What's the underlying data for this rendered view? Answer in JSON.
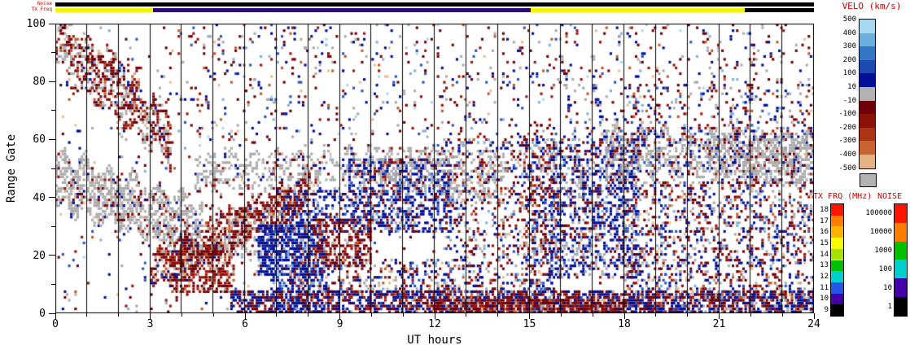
{
  "chart_data": {
    "type": "scatter",
    "title": "",
    "x_axis": {
      "label": "UT hours",
      "range": [
        0,
        24
      ],
      "major_tick_values": [
        0,
        3,
        6,
        9,
        12,
        15,
        18,
        21,
        24
      ],
      "major_tick_labels": [
        "0",
        "3",
        "6",
        "9",
        "12",
        "15",
        "18",
        "21",
        "24"
      ],
      "minor_tick_every": 1,
      "gridline_every_hours": 1
    },
    "y_axis": {
      "label": "Range Gate",
      "range": [
        0,
        100
      ],
      "major_tick_values": [
        0,
        20,
        40,
        60,
        80,
        100
      ],
      "major_tick_labels": [
        "0",
        "20",
        "40",
        "60",
        "80",
        "100"
      ],
      "minor_tick_every": 10
    },
    "status_bars": {
      "noise": {
        "label": "Noise",
        "segments": [
          {
            "t0": 0,
            "t1": 24,
            "color": "#000000"
          }
        ]
      },
      "tx_freq": {
        "label": "TX Freq",
        "segments": [
          {
            "t0": 0,
            "t1": 3.1,
            "color": "#f5f500"
          },
          {
            "t0": 3.1,
            "t1": 15.05,
            "color": "#2e0b72"
          },
          {
            "t0": 15.05,
            "t1": 21.8,
            "color": "#f5f500"
          },
          {
            "t0": 21.8,
            "t1": 24,
            "color": "#000000"
          }
        ]
      }
    },
    "colorbars": {
      "velocity": {
        "title": "VELO (km/s)",
        "boundary_labels": [
          "500",
          "400",
          "300",
          "200",
          "100",
          "10",
          "-10",
          "-100",
          "-200",
          "-300",
          "-400",
          "-500"
        ],
        "cell_colors": [
          "#a8d8ef",
          "#6aaede",
          "#3377c4",
          "#1b49ad",
          "#000f96",
          "#b2b2b2",
          "#6e0008",
          "#8c1208",
          "#ab3414",
          "#c86432",
          "#e5b285"
        ],
        "ground_scatter_color": "#b2b2b2"
      },
      "tx_frequency": {
        "title": "TX FRQ (MHz)",
        "labels": [
          "18",
          "17",
          "16",
          "15",
          "14",
          "13",
          "12",
          "11",
          "10",
          "9"
        ],
        "cell_colors": [
          "#ff1400",
          "#ff7d00",
          "#ffb300",
          "#fafa00",
          "#a8e000",
          "#00c000",
          "#00cfd0",
          "#2255e8",
          "#4400a8",
          "#000000"
        ]
      },
      "noise": {
        "title": "NOISE",
        "labels": [
          "100000",
          "10000",
          "1000",
          "100",
          "10",
          "1"
        ],
        "cell_colors": [
          "#ff1400",
          "#ff7d00",
          "#00c000",
          "#00cfd0",
          "#4400a8",
          "#000000"
        ]
      }
    },
    "point_colors": {
      "navy": "#000f96",
      "blue": "#2a55c0",
      "ltblue": "#7fb2e0",
      "cyan": "#a8dcf0",
      "gray": "#acacac",
      "maroon": "#6e0008",
      "red": "#9c1408",
      "orange": "#c25a28",
      "peach": "#e8bf96"
    },
    "palettes": {
      "all": {
        "navy": 0.2,
        "maroon": 0.22,
        "gray": 0.16,
        "red": 0.12,
        "blue": 0.08,
        "orange": 0.07,
        "ltblue": 0.06,
        "peach": 0.05,
        "cyan": 0.04
      },
      "gscat": {
        "gray": 0.8,
        "maroon": 0.07,
        "navy": 0.06,
        "red": 0.04,
        "peach": 0.03
      },
      "gscatb": {
        "gray": 0.68,
        "navy": 0.16,
        "maroon": 0.08,
        "blue": 0.04,
        "red": 0.04
      },
      "neg": {
        "maroon": 0.5,
        "red": 0.25,
        "orange": 0.08,
        "gray": 0.08,
        "navy": 0.05,
        "peach": 0.04
      },
      "negray": {
        "maroon": 0.36,
        "red": 0.2,
        "gray": 0.3,
        "orange": 0.05,
        "navy": 0.05,
        "peach": 0.04
      },
      "grayneg": {
        "gray": 0.45,
        "maroon": 0.28,
        "red": 0.14,
        "navy": 0.05,
        "orange": 0.05,
        "peach": 0.03
      },
      "pos": {
        "navy": 0.7,
        "blue": 0.12,
        "ltblue": 0.06,
        "gray": 0.06,
        "maroon": 0.04,
        "cyan": 0.02
      },
      "posmix": {
        "navy": 0.5,
        "blue": 0.1,
        "gray": 0.12,
        "maroon": 0.14,
        "red": 0.08,
        "ltblue": 0.06
      },
      "posmix2": {
        "navy": 0.44,
        "gray": 0.2,
        "maroon": 0.14,
        "red": 0.08,
        "blue": 0.07,
        "ltblue": 0.07
      },
      "posgray": {
        "navy": 0.45,
        "gray": 0.34,
        "blue": 0.08,
        "maroon": 0.07,
        "ltblue": 0.06
      },
      "mix": {
        "navy": 0.24,
        "maroon": 0.26,
        "gray": 0.18,
        "red": 0.1,
        "blue": 0.08,
        "orange": 0.06,
        "peach": 0.04,
        "ltblue": 0.04
      },
      "botmix": {
        "navy": 0.45,
        "maroon": 0.3,
        "red": 0.12,
        "blue": 0.05,
        "orange": 0.04,
        "gray": 0.04
      }
    },
    "scatter_regions": [
      {
        "type": "rect",
        "t0": 0,
        "t1": 24,
        "g0": 0,
        "g1": 100,
        "density": 0.03,
        "palette": "all"
      },
      {
        "type": "band",
        "t0": 0,
        "t1": 3.6,
        "gc0": 93,
        "gc1": 61,
        "w": 8,
        "density": 0.5,
        "palette": "negray"
      },
      {
        "type": "band",
        "t0": 0.2,
        "t1": 2.6,
        "gc0": 97,
        "gc1": 79,
        "w": 4,
        "density": 0.33,
        "palette": "negray"
      },
      {
        "type": "band",
        "t0": 0,
        "t1": 4.6,
        "gc0": 46,
        "gc1": 29,
        "w": 9,
        "density": 0.55,
        "palette": "gscat"
      },
      {
        "type": "band",
        "t0": 3.0,
        "t1": 8.0,
        "gc0": 14,
        "gc1": 42,
        "w": 6,
        "density": 0.5,
        "palette": "neg"
      },
      {
        "type": "rect",
        "t0": 3.6,
        "t1": 5.6,
        "g0": 7,
        "g1": 23,
        "density": 0.5,
        "palette": "neg"
      },
      {
        "type": "rect",
        "t0": 5.0,
        "t1": 7.3,
        "g0": 20,
        "g1": 36,
        "density": 0.32,
        "palette": "grayneg"
      },
      {
        "type": "band",
        "t0": 4.4,
        "t1": 10.6,
        "gc0": 48,
        "gc1": 51,
        "w": 6,
        "density": 0.32,
        "palette": "gscat"
      },
      {
        "type": "rect",
        "t0": 6.4,
        "t1": 8.4,
        "g0": 13,
        "g1": 30,
        "density": 0.7,
        "palette": "pos"
      },
      {
        "type": "rect",
        "t0": 6.7,
        "t1": 8.6,
        "g0": 0,
        "g1": 13,
        "density": 0.4,
        "palette": "pos"
      },
      {
        "type": "rect",
        "t0": 7.0,
        "t1": 9.2,
        "g0": 28,
        "g1": 42,
        "density": 0.38,
        "palette": "posmix"
      },
      {
        "type": "rect",
        "t0": 8.2,
        "t1": 9.9,
        "g0": 16,
        "g1": 32,
        "density": 0.42,
        "palette": "neg"
      },
      {
        "type": "rect",
        "t0": 9.3,
        "t1": 12.4,
        "g0": 28,
        "g1": 53,
        "density": 0.5,
        "palette": "posmix"
      },
      {
        "type": "rect",
        "t0": 10.3,
        "t1": 12.7,
        "g0": 42,
        "g1": 57,
        "density": 0.28,
        "palette": "gscat"
      },
      {
        "type": "rect",
        "t0": 7.4,
        "t1": 12.6,
        "g0": 6,
        "g1": 18,
        "density": 0.28,
        "palette": "mix"
      },
      {
        "type": "rect",
        "t0": 5.6,
        "t1": 24,
        "g0": 0,
        "g1": 7,
        "density": 0.6,
        "palette": "botmix"
      },
      {
        "type": "rect",
        "t0": 12.0,
        "t1": 18.0,
        "g0": 0,
        "g1": 4,
        "density": 0.72,
        "palette": "neg"
      },
      {
        "type": "rect",
        "t0": 12.3,
        "t1": 15.7,
        "g0": 5,
        "g1": 60,
        "density": 0.22,
        "palette": "mix"
      },
      {
        "type": "rect",
        "t0": 12.4,
        "t1": 14.2,
        "g0": 38,
        "g1": 56,
        "density": 0.25,
        "palette": "gscat"
      },
      {
        "type": "rect",
        "t0": 14.8,
        "t1": 15.75,
        "g0": 0,
        "g1": 62,
        "density": 0.3,
        "palette": "mix"
      },
      {
        "type": "band",
        "t0": 15.95,
        "t1": 16.75,
        "gc0": 91,
        "gc1": 33,
        "w": 3,
        "density": 0.5,
        "palette": "posgray"
      },
      {
        "type": "rect",
        "t0": 15.7,
        "t1": 18.4,
        "g0": 12,
        "g1": 60,
        "density": 0.4,
        "palette": "posmix2"
      },
      {
        "type": "band",
        "t0": 17.0,
        "t1": 17.9,
        "gc0": 78,
        "gc1": 39,
        "w": 4,
        "density": 0.42,
        "palette": "posgray"
      },
      {
        "type": "band",
        "t0": 17.4,
        "t1": 24,
        "gc0": 56,
        "gc1": 54,
        "w": 7,
        "density": 0.48,
        "palette": "gscatb"
      },
      {
        "type": "rect",
        "t0": 20.6,
        "t1": 24,
        "g0": 45,
        "g1": 62,
        "density": 0.32,
        "palette": "gscat"
      },
      {
        "type": "rect",
        "t0": 18.0,
        "t1": 24,
        "g0": 0,
        "g1": 45,
        "density": 0.26,
        "palette": "mix"
      },
      {
        "type": "rect",
        "t0": 3.5,
        "t1": 24,
        "g0": 60,
        "g1": 100,
        "density": 0.045,
        "palette": "all"
      },
      {
        "type": "rect",
        "t0": 18.0,
        "t1": 24,
        "g0": 62,
        "g1": 80,
        "density": 0.1,
        "palette": "mix"
      }
    ]
  }
}
